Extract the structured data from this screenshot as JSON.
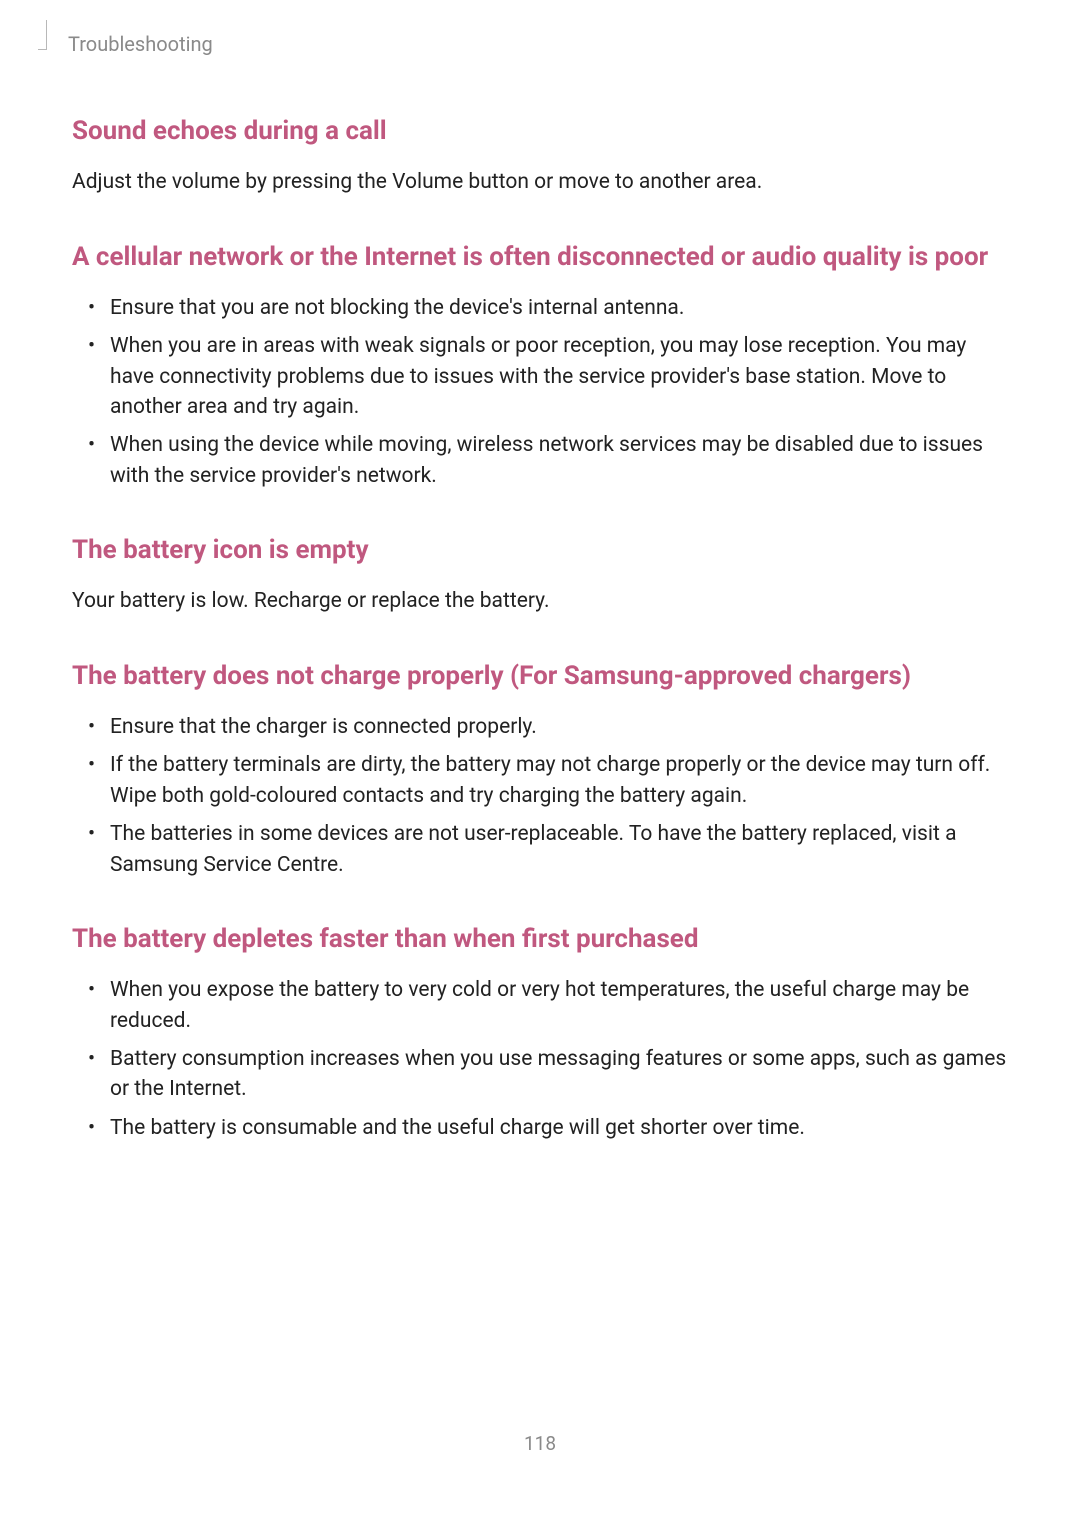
{
  "breadcrumb": "Troubleshooting",
  "sections": [
    {
      "heading": "Sound echoes during a call",
      "body": "Adjust the volume by pressing the Volume button or move to another area."
    },
    {
      "heading": "A cellular network or the Internet is often disconnected or audio quality is poor",
      "bullets": [
        "Ensure that you are not blocking the device's internal antenna.",
        "When you are in areas with weak signals or poor reception, you may lose reception. You may have connectivity problems due to issues with the service provider's base station. Move to another area and try again.",
        "When using the device while moving, wireless network services may be disabled due to issues with the service provider's network."
      ]
    },
    {
      "heading": "The battery icon is empty",
      "body": "Your battery is low. Recharge or replace the battery."
    },
    {
      "heading": "The battery does not charge properly (For Samsung-approved chargers)",
      "bullets": [
        "Ensure that the charger is connected properly.",
        "If the battery terminals are dirty, the battery may not charge properly or the device may turn off. Wipe both gold-coloured contacts and try charging the battery again.",
        "The batteries in some devices are not user-replaceable. To have the battery replaced, visit a Samsung Service Centre."
      ]
    },
    {
      "heading": "The battery depletes faster than when first purchased",
      "bullets": [
        "When you expose the battery to very cold or very hot temperatures, the useful charge may be reduced.",
        "Battery consumption increases when you use messaging features or some apps, such as games or the Internet.",
        "The battery is consumable and the useful charge will get shorter over time."
      ]
    }
  ],
  "page_number": "118",
  "colors": {
    "heading": "#c0587f",
    "body": "#222222",
    "muted": "#8a8a8a",
    "background": "#ffffff"
  }
}
